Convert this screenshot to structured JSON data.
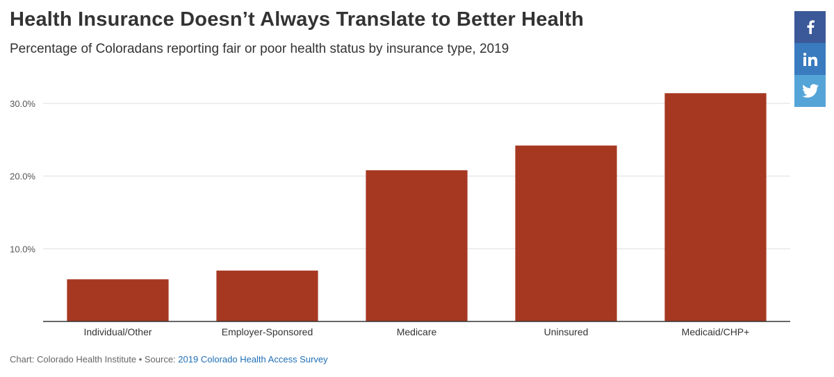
{
  "chart_data": {
    "type": "bar",
    "title": "Health Insurance Doesn’t Always Translate to Better Health",
    "subtitle": "Percentage of Coloradans reporting fair or poor health status by insurance type, 2019",
    "categories": [
      "Individual/Other",
      "Employer-Sponsored",
      "Medicare",
      "Uninsured",
      "Medicaid/CHP+"
    ],
    "values": [
      5.8,
      7.0,
      20.8,
      24.2,
      31.4
    ],
    "y_ticks": [
      {
        "value": 10,
        "label": "10.0%"
      },
      {
        "value": 20,
        "label": "20.0%"
      },
      {
        "value": 30,
        "label": "30.0%"
      }
    ],
    "ylim": [
      0,
      34
    ],
    "xlabel": "",
    "ylabel": "",
    "grid": true,
    "bar_color": "#a63822",
    "grid_color": "#dddddd",
    "axis_color": "#333333"
  },
  "footer": {
    "credit": "Chart: Colorado Health Institute • Source: ",
    "source_link": "2019 Colorado Health Access Survey"
  },
  "share": {
    "facebook_icon": "facebook-icon",
    "linkedin_icon": "linkedin-icon",
    "twitter_icon": "twitter-icon"
  }
}
